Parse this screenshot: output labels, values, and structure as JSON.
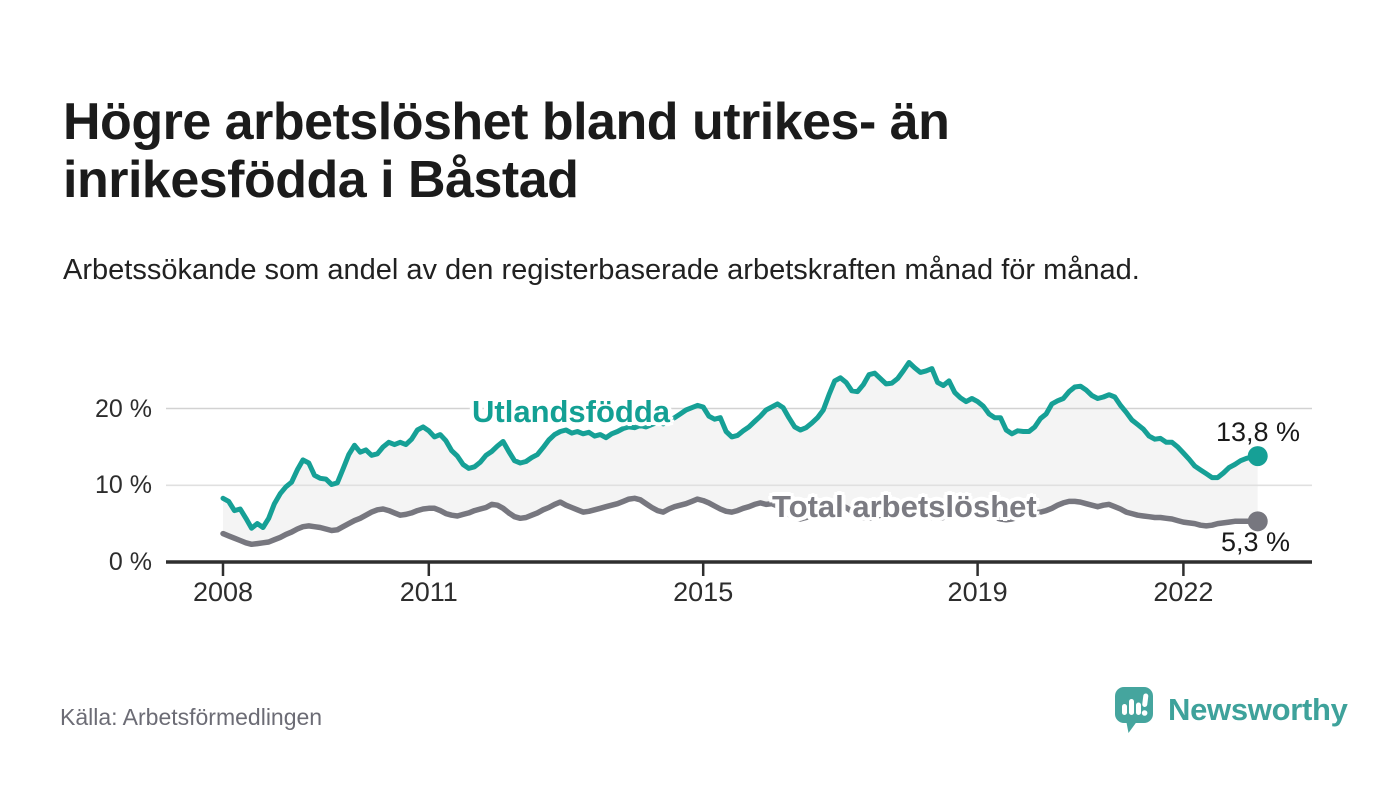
{
  "header": {
    "title": "Högre arbetslöshet bland utrikes- än inrikesfödda i Båstad",
    "subtitle": "Arbetssökande som andel av den registerbaserade arbetskraften månad för månad."
  },
  "footer": {
    "source": "Källa: Arbetsförmedlingen",
    "brand": "Newsworthy"
  },
  "chart_data": {
    "type": "line",
    "title": "Högre arbetslöshet bland utrikes- än inrikesfödda i Båstad",
    "subtitle": "Arbetssökande som andel av den registerbaserade arbetskraften månad för månad.",
    "unit": "%",
    "x_start_year": 2008,
    "x_step_months": 1,
    "x_end": "2023-02",
    "ylim": [
      0,
      28
    ],
    "grid": "horizontal",
    "legend_position": "inline-annotations",
    "colors": {
      "fill_between": "#f4f4f4",
      "grid": "#d9d9d9",
      "axis": "#2e2e2e"
    },
    "y_ticks": [
      {
        "label": "20 %",
        "value": 20
      },
      {
        "label": "10 %",
        "value": 10
      },
      {
        "label": "0 %",
        "value": 0
      }
    ],
    "x_ticks": [
      {
        "label": "2008",
        "year": 2008
      },
      {
        "label": "2011",
        "year": 2011
      },
      {
        "label": "2015",
        "year": 2015
      },
      {
        "label": "2019",
        "year": 2019
      },
      {
        "label": "2022",
        "year": 2022
      }
    ],
    "series": [
      {
        "name": "Utlandsfödda",
        "color": "#16a096",
        "end_label": "13,8 %",
        "end_value": 13.8,
        "values": [
          8.3,
          7.9,
          6.7,
          6.9,
          5.7,
          4.4,
          5.0,
          4.5,
          5.7,
          7.6,
          8.9,
          9.8,
          10.4,
          12.0,
          13.3,
          12.9,
          11.3,
          10.9,
          10.8,
          10.1,
          10.3,
          12.1,
          14.0,
          15.2,
          14.3,
          14.6,
          13.9,
          14.1,
          15.0,
          15.6,
          15.3,
          15.6,
          15.3,
          16.0,
          17.2,
          17.6,
          17.1,
          16.3,
          16.6,
          15.8,
          14.5,
          13.8,
          12.7,
          12.2,
          12.4,
          13.0,
          13.9,
          14.4,
          15.1,
          15.7,
          14.4,
          13.2,
          12.9,
          13.1,
          13.6,
          14.0,
          14.9,
          15.9,
          16.6,
          17.0,
          17.2,
          16.8,
          17.0,
          16.7,
          16.9,
          16.4,
          16.6,
          16.2,
          16.7,
          17.0,
          17.4,
          17.6,
          17.5,
          17.8,
          17.6,
          17.9,
          18.2,
          18.0,
          18.4,
          18.8,
          19.3,
          19.8,
          20.1,
          20.4,
          20.2,
          19.0,
          18.6,
          18.8,
          17.0,
          16.3,
          16.5,
          17.1,
          17.6,
          18.3,
          19.0,
          19.8,
          20.2,
          20.6,
          20.1,
          18.8,
          17.6,
          17.2,
          17.5,
          18.1,
          18.8,
          19.8,
          21.8,
          23.6,
          24.0,
          23.4,
          22.3,
          22.2,
          23.1,
          24.4,
          24.6,
          23.9,
          23.2,
          23.3,
          23.9,
          24.9,
          26.0,
          25.3,
          24.7,
          24.9,
          25.2,
          23.4,
          23.0,
          23.6,
          22.1,
          21.4,
          20.9,
          21.3,
          20.9,
          20.3,
          19.3,
          18.8,
          18.8,
          17.2,
          16.7,
          17.1,
          17.0,
          17.0,
          17.6,
          18.7,
          19.3,
          20.6,
          21.0,
          21.3,
          22.2,
          22.8,
          22.9,
          22.4,
          21.7,
          21.3,
          21.5,
          21.8,
          21.5,
          20.4,
          19.5,
          18.5,
          17.9,
          17.3,
          16.4,
          16.0,
          16.1,
          15.6,
          15.6,
          15.0,
          14.2,
          13.4,
          12.5,
          12.0,
          11.5,
          11.0,
          11.0,
          11.6,
          12.3,
          12.7,
          13.2,
          13.5,
          13.7,
          13.8
        ]
      },
      {
        "name": "Total arbetslöshet",
        "color": "#77777f",
        "end_label": "5,3 %",
        "end_value": 5.3,
        "values": [
          3.7,
          3.4,
          3.1,
          2.8,
          2.5,
          2.3,
          2.4,
          2.5,
          2.6,
          2.9,
          3.2,
          3.6,
          3.9,
          4.3,
          4.6,
          4.7,
          4.6,
          4.5,
          4.3,
          4.1,
          4.2,
          4.6,
          5.0,
          5.4,
          5.7,
          6.1,
          6.5,
          6.8,
          6.9,
          6.7,
          6.4,
          6.1,
          6.2,
          6.4,
          6.7,
          6.9,
          7.0,
          7.0,
          6.7,
          6.3,
          6.1,
          6.0,
          6.2,
          6.4,
          6.7,
          6.9,
          7.1,
          7.5,
          7.4,
          7.0,
          6.4,
          5.9,
          5.7,
          5.8,
          6.1,
          6.4,
          6.8,
          7.1,
          7.5,
          7.8,
          7.4,
          7.1,
          6.8,
          6.5,
          6.6,
          6.8,
          7.0,
          7.2,
          7.4,
          7.6,
          7.9,
          8.2,
          8.3,
          8.1,
          7.6,
          7.1,
          6.7,
          6.5,
          6.9,
          7.2,
          7.4,
          7.6,
          7.9,
          8.2,
          8.0,
          7.7,
          7.3,
          6.9,
          6.6,
          6.5,
          6.7,
          7.0,
          7.2,
          7.5,
          7.7,
          7.5,
          7.6,
          7.3,
          6.8,
          6.2,
          5.8,
          5.6,
          5.8,
          6.0,
          6.4,
          6.7,
          7.0,
          7.3,
          7.4,
          7.1,
          6.6,
          6.1,
          5.8,
          5.7,
          5.9,
          6.1,
          6.3,
          6.6,
          6.9,
          7.1,
          7.2,
          6.9,
          6.5,
          6.0,
          5.8,
          5.7,
          5.8,
          6.0,
          6.2,
          6.4,
          6.6,
          6.9,
          7.0,
          6.7,
          6.2,
          5.8,
          5.6,
          5.5,
          5.6,
          5.8,
          6.0,
          6.2,
          6.4,
          6.5,
          6.7,
          7.0,
          7.4,
          7.7,
          7.9,
          7.9,
          7.8,
          7.6,
          7.4,
          7.2,
          7.4,
          7.5,
          7.2,
          6.9,
          6.5,
          6.3,
          6.1,
          6.0,
          5.9,
          5.8,
          5.8,
          5.7,
          5.6,
          5.4,
          5.2,
          5.1,
          5.0,
          4.8,
          4.7,
          4.8,
          5.0,
          5.1,
          5.2,
          5.3,
          5.3,
          5.3,
          5.3,
          5.3
        ]
      }
    ]
  }
}
